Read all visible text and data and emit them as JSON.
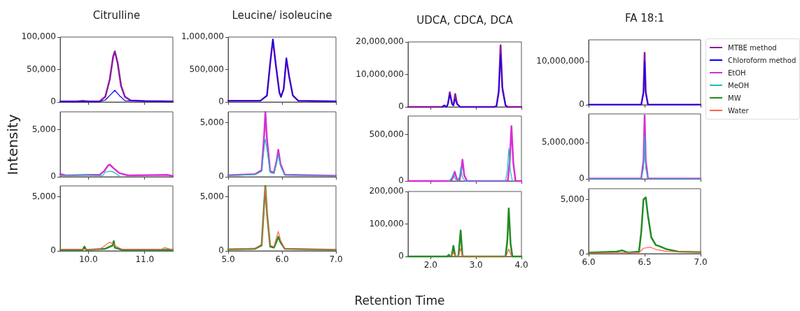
{
  "chart_data": [
    {
      "type": "line",
      "title": "Citrulline",
      "xlim": [
        9.5,
        11.5
      ],
      "xticks": [
        {
          "value": 10,
          "label": null
        },
        {
          "value": 11,
          "label": null
        }
      ],
      "ylim": [
        0,
        100000
      ],
      "yticks": [
        {
          "value": 0,
          "label": "0"
        },
        {
          "value": 50000,
          "label": "50,000"
        },
        {
          "value": 100000,
          "label": "100,000"
        }
      ],
      "tick_labels": "y",
      "legend": "right",
      "series": [
        {
          "name": "MTBE method",
          "color": "#8b1a9c",
          "x": [
            9.5,
            9.8,
            9.9,
            10.0,
            10.2,
            10.3,
            10.38,
            10.44,
            10.47,
            10.52,
            10.58,
            10.65,
            10.75,
            11.0,
            11.5
          ],
          "values": [
            1000,
            1000,
            1800,
            1000,
            1000,
            8000,
            35000,
            70000,
            78000,
            60000,
            25000,
            8000,
            2500,
            1500,
            1000
          ]
        },
        {
          "name": "Chloroform method",
          "color": "#0000ff",
          "x": [
            9.5,
            10.2,
            10.3,
            10.4,
            10.47,
            10.55,
            10.65,
            11.5
          ],
          "values": [
            500,
            500,
            3000,
            12000,
            18000,
            10000,
            2000,
            500
          ]
        }
      ]
    },
    {
      "type": "line",
      "title": "Leucine/ isoleucine",
      "xlim": [
        5,
        7
      ],
      "xticks": [
        {
          "value": 5,
          "label": null
        },
        {
          "value": 6,
          "label": null
        },
        {
          "value": 7,
          "label": null
        }
      ],
      "ylim": [
        0,
        1000000
      ],
      "yticks": [
        {
          "value": 0,
          "label": "0"
        },
        {
          "value": 500000,
          "label": "500,000"
        },
        {
          "value": 1000000,
          "label": "1,000,000"
        }
      ],
      "tick_labels": "y",
      "series": [
        {
          "color": "#8b1a9c",
          "x": [
            5.0,
            5.6,
            5.72,
            5.78,
            5.83,
            5.88,
            5.95,
            5.98,
            6.03,
            6.08,
            6.13,
            6.2,
            6.3,
            7.0
          ],
          "values": [
            20000,
            20000,
            100000,
            600000,
            960000,
            600000,
            150000,
            80000,
            200000,
            670000,
            400000,
            100000,
            20000,
            10000
          ]
        },
        {
          "color": "#0000ff",
          "x": [
            5.0,
            5.6,
            5.72,
            5.78,
            5.83,
            5.88,
            5.95,
            5.98,
            6.03,
            6.08,
            6.13,
            6.2,
            6.3,
            7.0
          ],
          "values": [
            20000,
            20000,
            100000,
            600000,
            970000,
            600000,
            150000,
            80000,
            200000,
            680000,
            400000,
            100000,
            20000,
            10000
          ]
        }
      ]
    },
    {
      "type": "line",
      "title": "UDCA, CDCA, DCA",
      "xlim": [
        1.5,
        4
      ],
      "xticks": [
        {
          "value": 2,
          "label": null
        },
        {
          "value": 3,
          "label": null
        },
        {
          "value": 4,
          "label": null
        }
      ],
      "ylim": [
        0,
        20000000
      ],
      "yticks": [
        {
          "value": 0,
          "label": "0"
        },
        {
          "value": 10000000,
          "label": "10,000,000"
        },
        {
          "value": 20000000,
          "label": "20,000,000"
        }
      ],
      "tick_labels": "y",
      "series": [
        {
          "color": "#8b1a9c",
          "x": [
            1.5,
            2.25,
            2.3,
            2.35,
            2.38,
            2.42,
            2.47,
            2.5,
            2.54,
            2.58,
            2.65,
            3.4,
            3.45,
            3.5,
            3.54,
            3.58,
            3.65,
            3.7,
            4.0
          ],
          "values": [
            0,
            0,
            500000,
            0,
            1000000,
            4500000,
            1000000,
            500000,
            4000000,
            1000000,
            0,
            0,
            300000,
            5000000,
            19000000,
            6000000,
            500000,
            0,
            0
          ]
        },
        {
          "color": "#0000ff",
          "x": [
            2.25,
            2.3,
            2.35,
            2.38,
            2.42,
            2.47,
            2.5,
            2.54,
            2.58,
            2.65,
            3.4,
            3.45,
            3.5,
            3.54,
            3.58,
            3.65,
            3.7
          ],
          "values": [
            0,
            400000,
            0,
            800000,
            3800000,
            800000,
            400000,
            2300000,
            800000,
            0,
            0,
            200000,
            4000000,
            16000000,
            5000000,
            400000,
            0
          ]
        }
      ]
    },
    {
      "type": "line",
      "title": "FA 18:1",
      "xlim": [
        6,
        7
      ],
      "xticks": [
        {
          "value": 6,
          "label": null
        },
        {
          "value": 6.5,
          "label": null
        },
        {
          "value": 7,
          "label": null
        }
      ],
      "ylim": [
        0,
        15000000
      ],
      "yticks": [
        {
          "value": 0,
          "label": "0"
        },
        {
          "value": 10000000,
          "label": "10,000,000"
        }
      ],
      "tick_labels": "y",
      "series": [
        {
          "color": "#8b1a9c",
          "x": [
            6.0,
            6.47,
            6.49,
            6.5,
            6.51,
            6.53,
            7.0
          ],
          "values": [
            50000,
            50000,
            3000000,
            12000000,
            3000000,
            50000,
            50000
          ]
        },
        {
          "color": "#0000ff",
          "x": [
            6.0,
            6.47,
            6.49,
            6.5,
            6.51,
            6.53,
            7.0
          ],
          "values": [
            50000,
            50000,
            2500000,
            10000000,
            2500000,
            50000,
            50000
          ]
        }
      ]
    },
    {
      "type": "line",
      "ylabel": "Intensity",
      "legend": "right",
      "xlim": [
        9.5,
        11.5
      ],
      "xticks": [
        {
          "value": 10,
          "label": null
        },
        {
          "value": 11,
          "label": null
        }
      ],
      "ylim": [
        0,
        6900
      ],
      "yticks": [
        {
          "value": 0,
          "label": "0"
        },
        {
          "value": 5000,
          "label": "5,000"
        }
      ],
      "tick_labels": "y",
      "series": [
        {
          "name": "EtOH",
          "color": "#d62fd6",
          "x": [
            9.5,
            9.6,
            10.0,
            10.2,
            10.28,
            10.35,
            10.38,
            10.45,
            10.55,
            10.7,
            11.4,
            11.5
          ],
          "values": [
            300,
            150,
            200,
            200,
            600,
            1200,
            1300,
            900,
            400,
            150,
            200,
            100
          ]
        },
        {
          "name": "MeOH",
          "color": "#17bfbf",
          "x": [
            9.5,
            9.9,
            10.25,
            10.3,
            10.4,
            10.48,
            10.55
          ],
          "values": [
            100,
            200,
            100,
            500,
            600,
            400,
            100
          ]
        }
      ]
    },
    {
      "type": "line",
      "xlim": [
        5,
        7
      ],
      "xticks": [
        {
          "value": 5,
          "label": null
        },
        {
          "value": 6,
          "label": null
        },
        {
          "value": 7,
          "label": null
        }
      ],
      "ylim": [
        0,
        6000
      ],
      "yticks": [
        {
          "value": 0,
          "label": "0"
        },
        {
          "value": 5000,
          "label": "5,000"
        }
      ],
      "tick_labels": "y",
      "series": [
        {
          "color": "#d62fd6",
          "x": [
            5.0,
            5.5,
            5.62,
            5.67,
            5.69,
            5.72,
            5.78,
            5.85,
            5.9,
            5.93,
            5.97,
            6.05,
            7.0
          ],
          "values": [
            150,
            250,
            600,
            4000,
            6000,
            3500,
            500,
            400,
            1500,
            2500,
            1200,
            200,
            100
          ]
        },
        {
          "color": "#17bfbf",
          "x": [
            5.0,
            5.5,
            5.62,
            5.67,
            5.69,
            5.72,
            5.78,
            5.85,
            5.9,
            5.93,
            5.97,
            6.05,
            7.0
          ],
          "values": [
            100,
            200,
            500,
            2800,
            3500,
            2500,
            400,
            300,
            1300,
            2000,
            1000,
            150,
            80
          ]
        }
      ]
    },
    {
      "type": "line",
      "xlim": [
        1.5,
        4
      ],
      "xticks": [
        {
          "value": 2,
          "label": null
        },
        {
          "value": 3,
          "label": null
        },
        {
          "value": 4,
          "label": null
        }
      ],
      "ylim": [
        0,
        700000
      ],
      "yticks": [
        {
          "value": 0,
          "label": "0"
        },
        {
          "value": 500000,
          "label": "500,000"
        }
      ],
      "tick_labels": "y",
      "series": [
        {
          "color": "#d62fd6",
          "x": [
            1.5,
            2.45,
            2.5,
            2.53,
            2.57,
            2.63,
            2.67,
            2.7,
            2.74,
            2.8,
            3.7,
            3.74,
            3.78,
            3.82,
            3.87,
            4.0
          ],
          "values": [
            0,
            0,
            50000,
            100000,
            30000,
            0,
            100000,
            230000,
            60000,
            0,
            0,
            200000,
            590000,
            200000,
            0,
            0
          ]
        },
        {
          "color": "#17bfbf",
          "x": [
            2.4,
            2.46,
            2.5,
            2.54,
            2.6,
            2.64,
            2.66,
            2.7,
            2.76,
            3.65,
            3.69,
            3.72,
            3.76,
            3.8
          ],
          "values": [
            0,
            30000,
            80000,
            20000,
            0,
            60000,
            150000,
            40000,
            0,
            0,
            120000,
            350000,
            100000,
            0
          ]
        }
      ]
    },
    {
      "type": "line",
      "xlim": [
        6,
        7
      ],
      "xticks": [
        {
          "value": 6,
          "label": null
        },
        {
          "value": 6.5,
          "label": null
        },
        {
          "value": 7,
          "label": null
        }
      ],
      "ylim": [
        0,
        9000000
      ],
      "yticks": [
        {
          "value": 0,
          "label": "0"
        },
        {
          "value": 5000000,
          "label": "5,000,000"
        }
      ],
      "tick_labels": "y",
      "series": [
        {
          "color": "#d62fd6",
          "x": [
            6.0,
            6.47,
            6.49,
            6.5,
            6.51,
            6.53,
            7.0
          ],
          "values": [
            50000,
            50000,
            2500000,
            8800000,
            2500000,
            50000,
            50000
          ]
        },
        {
          "color": "#17bfbf",
          "x": [
            6.0,
            6.47,
            6.49,
            6.5,
            6.51,
            6.53,
            7.0
          ],
          "values": [
            40000,
            40000,
            1500000,
            6000000,
            1500000,
            40000,
            40000
          ]
        }
      ]
    },
    {
      "type": "line",
      "legend": "right",
      "xlim": [
        9.5,
        11.5
      ],
      "xticks": [
        {
          "value": 10,
          "label": "10.0"
        },
        {
          "value": 11,
          "label": "11.0"
        }
      ],
      "ylim": [
        0,
        6000
      ],
      "yticks": [
        {
          "value": 0,
          "label": "0"
        },
        {
          "value": 5000,
          "label": "5,000"
        }
      ],
      "series": [
        {
          "name": "MW",
          "color": "#228b22",
          "x": [
            9.5,
            9.9,
            9.93,
            9.96,
            10.3,
            10.43,
            10.45,
            10.47,
            10.6,
            11.5
          ],
          "values": [
            100,
            100,
            400,
            100,
            200,
            500,
            900,
            300,
            100,
            100
          ]
        },
        {
          "name": "Water",
          "color": "#ff6347",
          "x": [
            9.5,
            9.9,
            10.2,
            10.3,
            10.37,
            10.42,
            10.5,
            10.6,
            11.3,
            11.35,
            11.5
          ],
          "values": [
            150,
            150,
            150,
            500,
            800,
            700,
            400,
            150,
            150,
            300,
            100
          ]
        }
      ]
    },
    {
      "type": "line",
      "xlabel": "Retention Time",
      "xlim": [
        5,
        7
      ],
      "xticks": [
        {
          "value": 5,
          "label": "5.0"
        },
        {
          "value": 6,
          "label": "6.0"
        },
        {
          "value": 7,
          "label": "7.0"
        }
      ],
      "ylim": [
        0,
        6000
      ],
      "yticks": [
        {
          "value": 0,
          "label": "0"
        },
        {
          "value": 5000,
          "label": "5,000"
        }
      ],
      "series": [
        {
          "color": "#228b22",
          "x": [
            5.0,
            5.5,
            5.62,
            5.67,
            5.69,
            5.72,
            5.78,
            5.85,
            5.9,
            5.93,
            5.97,
            6.05,
            7.0
          ],
          "values": [
            150,
            200,
            500,
            4500,
            6000,
            3500,
            400,
            300,
            900,
            1300,
            800,
            200,
            100
          ]
        },
        {
          "color": "#ff6347",
          "x": [
            5.0,
            5.5,
            5.62,
            5.67,
            5.69,
            5.72,
            5.78,
            5.85,
            5.9,
            5.93,
            5.97,
            6.05,
            7.0
          ],
          "values": [
            150,
            250,
            600,
            4200,
            5900,
            3500,
            500,
            400,
            1300,
            1800,
            1000,
            200,
            100
          ]
        }
      ]
    },
    {
      "type": "line",
      "xlim": [
        1.5,
        4
      ],
      "xticks": [
        {
          "value": 2,
          "label": "2.0"
        },
        {
          "value": 3,
          "label": "3.0"
        },
        {
          "value": 4,
          "label": "4.0"
        }
      ],
      "ylim": [
        0,
        200000
      ],
      "yticks": [
        {
          "value": 0,
          "label": "0"
        },
        {
          "value": 100000,
          "label": "100,000"
        },
        {
          "value": 200000,
          "label": "200,000"
        }
      ],
      "series": [
        {
          "color": "#228b22",
          "x": [
            1.5,
            2.36,
            2.4,
            2.43,
            2.46,
            2.5,
            2.54,
            2.61,
            2.66,
            2.7,
            3.65,
            3.69,
            3.72,
            3.76,
            3.8,
            4.0
          ],
          "values": [
            0,
            0,
            5000,
            0,
            0,
            33000,
            0,
            0,
            80000,
            0,
            0,
            50000,
            148000,
            40000,
            0,
            0
          ]
        },
        {
          "color": "#ff6347",
          "x": [
            2.45,
            2.5,
            2.55,
            2.61,
            2.66,
            2.7,
            3.66,
            3.72,
            3.78
          ],
          "values": [
            0,
            12000,
            0,
            0,
            25000,
            0,
            0,
            23000,
            0
          ]
        }
      ]
    },
    {
      "type": "line",
      "xlim": [
        6,
        7
      ],
      "xticks": [
        {
          "value": 6,
          "label": "6.0"
        },
        {
          "value": 6.5,
          "label": "6.5"
        },
        {
          "value": 7,
          "label": "7.0"
        }
      ],
      "ylim": [
        0,
        6000
      ],
      "yticks": [
        {
          "value": 0,
          "label": "0"
        },
        {
          "value": 5000,
          "label": "5,000"
        }
      ],
      "series": [
        {
          "color": "#228b22",
          "x": [
            6.0,
            6.25,
            6.3,
            6.35,
            6.45,
            6.47,
            6.49,
            6.51,
            6.53,
            6.56,
            6.6,
            6.63,
            6.7,
            6.8,
            7.0
          ],
          "values": [
            100,
            200,
            300,
            100,
            200,
            2000,
            5000,
            5200,
            3500,
            1500,
            800,
            700,
            400,
            200,
            150
          ]
        },
        {
          "color": "#ff6347",
          "x": [
            6.0,
            6.45,
            6.49,
            6.55,
            6.6,
            6.7,
            7.0
          ],
          "values": [
            50,
            100,
            500,
            600,
            400,
            200,
            150
          ]
        }
      ]
    }
  ]
}
